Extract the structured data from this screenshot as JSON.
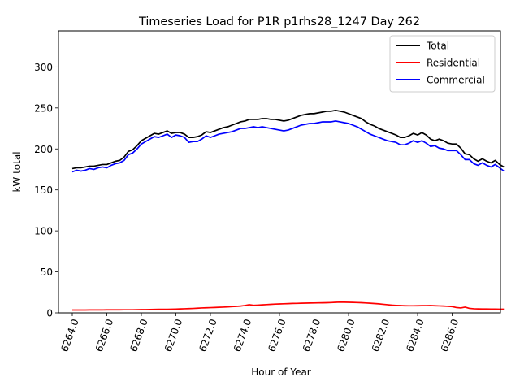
{
  "chart_data": {
    "type": "line",
    "title": "Timeseries Load for P1R p1rhs28_1247  Day 262",
    "xlabel": "Hour of Year",
    "ylabel": "kW total",
    "xlim": [
      6263.2,
      6288.8
    ],
    "ylim": [
      0,
      344
    ],
    "x_ticks": [
      6264,
      6266,
      6268,
      6270,
      6272,
      6274,
      6276,
      6278,
      6280,
      6282,
      6284,
      6286
    ],
    "x_tick_labels": [
      "6264.0",
      "6266.0",
      "6268.0",
      "6270.0",
      "6272.0",
      "6274.0",
      "6276.0",
      "6278.0",
      "6280.0",
      "6282.0",
      "6284.0",
      "6286.0"
    ],
    "y_ticks": [
      0,
      50,
      100,
      150,
      200,
      250,
      300
    ],
    "y_tick_labels": [
      "0",
      "50",
      "100",
      "150",
      "200",
      "250",
      "300"
    ],
    "grid": false,
    "legend_position": "top-right",
    "x_start": 6264.0,
    "x_step": 0.25,
    "series": [
      {
        "name": "Total",
        "color": "#000000",
        "values": [
          176,
          177,
          177,
          178,
          179,
          179,
          180,
          181,
          181,
          183,
          185,
          186,
          190,
          197,
          199,
          204,
          210,
          213,
          216,
          219,
          218,
          220,
          222,
          219,
          220,
          220,
          218,
          214,
          214,
          215,
          217,
          221,
          220,
          222,
          224,
          226,
          227,
          229,
          231,
          233,
          234,
          236,
          236,
          236,
          237,
          237,
          236,
          236,
          235,
          234,
          235,
          237,
          239,
          241,
          242,
          243,
          243,
          244,
          245,
          246,
          246,
          247,
          246,
          245,
          243,
          241,
          239,
          237,
          233,
          230,
          228,
          225,
          223,
          221,
          219,
          217,
          214,
          214,
          216,
          219,
          217,
          220,
          217,
          212,
          210,
          212,
          210,
          207,
          206,
          206,
          201,
          194,
          193,
          188,
          185,
          188,
          185,
          183,
          186,
          181,
          178
        ]
      },
      {
        "name": "Residential",
        "color": "#ff0000",
        "values": [
          3.5,
          3.5,
          3.5,
          3.5,
          3.6,
          3.6,
          3.6,
          3.6,
          3.7,
          3.7,
          3.7,
          3.7,
          3.8,
          3.8,
          3.8,
          3.9,
          4.0,
          4.0,
          4.1,
          4.2,
          4.3,
          4.4,
          4.4,
          4.5,
          4.6,
          4.8,
          5.0,
          5.2,
          5.4,
          5.7,
          6.0,
          6.2,
          6.4,
          6.6,
          6.8,
          7.0,
          7.3,
          7.6,
          7.9,
          8.3,
          9.0,
          10.0,
          9.2,
          9.5,
          9.8,
          10.1,
          10.4,
          10.7,
          10.9,
          11.1,
          11.3,
          11.5,
          11.6,
          11.8,
          11.9,
          12.0,
          12.1,
          12.2,
          12.3,
          12.4,
          12.6,
          12.9,
          13.1,
          13.0,
          12.9,
          12.8,
          12.6,
          12.4,
          12.1,
          11.8,
          11.4,
          11.0,
          10.5,
          10.0,
          9.4,
          9.1,
          8.9,
          8.7,
          8.6,
          8.6,
          8.7,
          8.8,
          8.8,
          8.9,
          8.7,
          8.5,
          8.3,
          8.0,
          7.6,
          6.5,
          6.0,
          7.0,
          5.5,
          5.0,
          4.8,
          4.7,
          4.7,
          4.6,
          4.6,
          4.5,
          4.5
        ]
      },
      {
        "name": "Commercial",
        "color": "#0000ff",
        "values": [
          172,
          174,
          173,
          174,
          176,
          175,
          177,
          178,
          177,
          180,
          182,
          183,
          186,
          193,
          195,
          200,
          206,
          209,
          212,
          215,
          214,
          216,
          218,
          214,
          217,
          216,
          214,
          208,
          209,
          209,
          212,
          216,
          214,
          216,
          218,
          219,
          220,
          221,
          223,
          225,
          225,
          226,
          227,
          226,
          227,
          226,
          225,
          224,
          223,
          222,
          223,
          225,
          227,
          229,
          230,
          231,
          231,
          232,
          233,
          233,
          233,
          234,
          233,
          232,
          231,
          229,
          227,
          224,
          221,
          218,
          216,
          214,
          212,
          210,
          209,
          208,
          205,
          205,
          207,
          210,
          208,
          210,
          207,
          203,
          204,
          201,
          200,
          198,
          198,
          198,
          193,
          187,
          187,
          182,
          180,
          183,
          180,
          178,
          181,
          177,
          173
        ]
      }
    ]
  }
}
